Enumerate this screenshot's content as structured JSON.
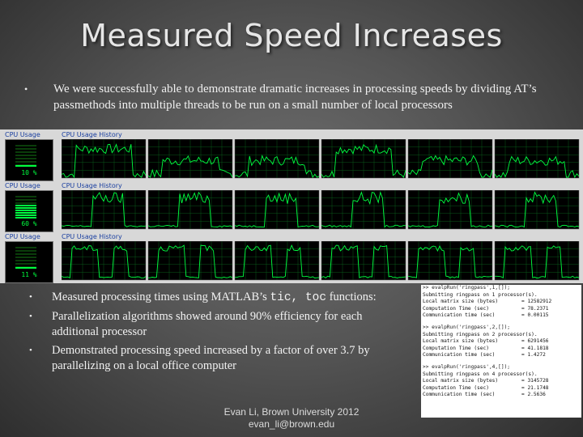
{
  "slide": {
    "title": "Measured Speed Increases",
    "intro_bullet": "•",
    "intro": "We were successfully able to demonstrate dramatic increases in processing speeds by dividing AT’s passmethods into multiple threads to be run on a small number of local processors",
    "bullets": [
      {
        "pre": "Measured processing times using MATLAB’s ",
        "code": "tic, toc",
        "post": " functions:"
      },
      {
        "text": "Parallelization algorithms showed around 90% efficiency for each additional processor"
      },
      {
        "text": "Demonstrated processing speed increased by a factor of over 3.7 by parallelizing on a local office computer"
      }
    ],
    "footer_line1": "Evan Li, Brown University 2012",
    "footer_line2": "evan_li@brown.edu"
  },
  "task_manager": {
    "rows": [
      {
        "usage_label": "CPU Usage",
        "history_label": "CPU Usage History",
        "percent": "10 %",
        "usage_fraction": 0.1
      },
      {
        "usage_label": "CPU Usage",
        "history_label": "CPU Usage History",
        "percent": "60 %",
        "usage_fraction": 0.6
      },
      {
        "usage_label": "CPU Usage",
        "history_label": "CPU Usage History",
        "percent": "11 %",
        "usage_fraction": 0.11
      }
    ]
  },
  "console": {
    "blocks": [
      {
        "cmd": ">> evalpRun('ringpass',1,[]);",
        "sub": "Submitting ringpass on 1 processor(s).",
        "lines": [
          {
            "k": "Local matrix size (bytes)",
            "v": "= 12582912"
          },
          {
            "k": "Computation Time (sec)",
            "v": "= 78.2371"
          },
          {
            "k": "Communication time (sec)",
            "v": "= 0.00115"
          }
        ]
      },
      {
        "cmd": ">> evalpRun('ringpass',2,[]);",
        "sub": "Submitting ringpass on 2 processor(s).",
        "lines": [
          {
            "k": "Local matrix size (bytes)",
            "v": "= 6291456"
          },
          {
            "k": "Computation Time (sec)",
            "v": "= 41.1818"
          },
          {
            "k": "Communication time (sec)",
            "v": "= 1.4272"
          }
        ]
      },
      {
        "cmd": ">> evalpRun('ringpass',4,[]);",
        "sub": "Submitting ringpass on 4 processor(s).",
        "lines": [
          {
            "k": "Local matrix size (bytes)",
            "v": "= 3145728"
          },
          {
            "k": "Computation Time (sec)",
            "v": "= 21.1748"
          },
          {
            "k": "Communication time (sec)",
            "v": "= 2.5636"
          }
        ]
      }
    ]
  },
  "colors": {
    "graph_bg": "#000000",
    "graph_line": "#00ff40",
    "graph_grid": "#0a5a1a",
    "label_blue": "#1a3fa0"
  }
}
